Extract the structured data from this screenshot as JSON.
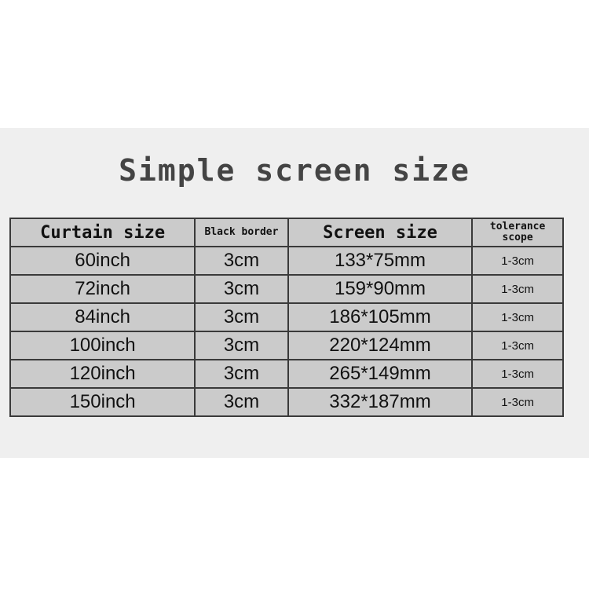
{
  "title": "Simple screen size",
  "table": {
    "headers": [
      "Curtain size",
      "Black border",
      "Screen size",
      "tolerance scope"
    ],
    "rows": [
      [
        "60inch",
        "3cm",
        "133*75mm",
        "1-3cm"
      ],
      [
        "72inch",
        "3cm",
        "159*90mm",
        "1-3cm"
      ],
      [
        "84inch",
        "3cm",
        "186*105mm",
        "1-3cm"
      ],
      [
        "100inch",
        "3cm",
        "220*124mm",
        "1-3cm"
      ],
      [
        "120inch",
        "3cm",
        "265*149mm",
        "1-3cm"
      ],
      [
        "150inch",
        "3cm",
        "332*187mm",
        "1-3cm"
      ]
    ]
  }
}
